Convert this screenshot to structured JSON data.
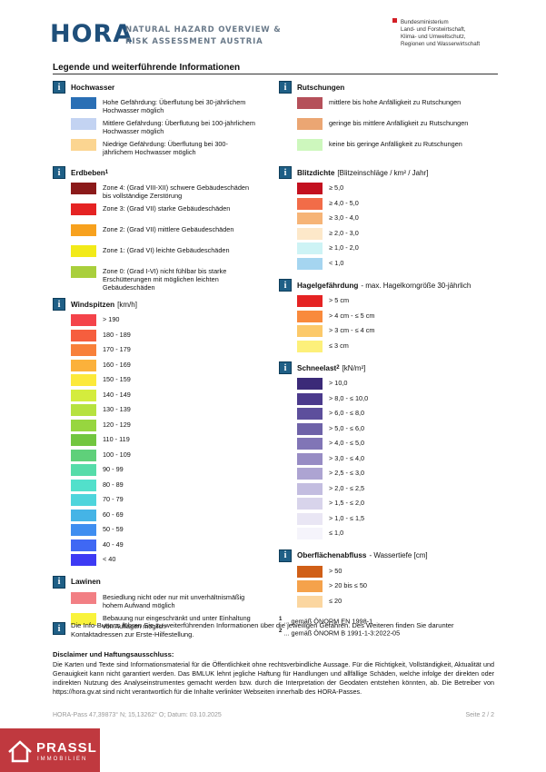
{
  "header": {
    "logo": "HORA",
    "subtitle": [
      "NATURAL HAZARD OVERVIEW &",
      "RISK ASSESSMENT AUSTRIA"
    ],
    "ministry": [
      "Bundesministerium",
      "Land- und Forstwirtschaft,",
      "Klima- und Umweltschutz,",
      "Regionen und Wasserwirtschaft"
    ]
  },
  "title": "Legende und weiterführende Informationen",
  "left": [
    {
      "title": "Hochwasser",
      "items": [
        {
          "color": "#2a6fb5",
          "label": "Hohe Gefährdung: Überflutung bei 30-jährlichem Hochwasser möglich"
        },
        {
          "color": "#c3d3f2",
          "label": "Mittlere Gefährdung: Überflutung bei 100-jährlichem Hochwasser möglich"
        },
        {
          "color": "#fbd591",
          "label": "Niedrige Gefährdung: Überflutung bei 300-jährlichem Hochwasser möglich"
        }
      ]
    },
    {
      "title": "Erdbeben",
      "sup": "1",
      "items": [
        {
          "color": "#8b1a1a",
          "label": "Zone 4: (Grad VIII-XII) schwere Gebäudeschäden bis vollständige Zerstörung"
        },
        {
          "color": "#e52323",
          "label": "Zone 3: (Grad VII) starke Gebäudeschäden"
        },
        {
          "color": "#f7a11e",
          "label": "Zone 2: (Grad VII) mittlere Gebäudeschäden"
        },
        {
          "color": "#f2ea19",
          "label": "Zone 1: (Grad VI) leichte Gebäudeschäden"
        },
        {
          "color": "#a9cf3c",
          "label": "Zone 0: (Grad I-VI) nicht fühlbar bis starke Erschütterungen mit möglichen leichten Gebäudeschäden"
        }
      ]
    },
    {
      "title": "Windspitzen",
      "unit": "[km/h]",
      "items": [
        {
          "color": "#f4434a",
          "label": "> 190"
        },
        {
          "color": "#f65e3e",
          "label": "180 - 189"
        },
        {
          "color": "#f8803a",
          "label": "170 - 179"
        },
        {
          "color": "#fbb13b",
          "label": "160 - 169"
        },
        {
          "color": "#fce93a",
          "label": "150 - 159"
        },
        {
          "color": "#d4ec3d",
          "label": "140 - 149"
        },
        {
          "color": "#b6e23f",
          "label": "130 - 139"
        },
        {
          "color": "#97d63f",
          "label": "120 - 129"
        },
        {
          "color": "#72c63f",
          "label": "110 - 119"
        },
        {
          "color": "#5fd07a",
          "label": "100 - 109"
        },
        {
          "color": "#56dca9",
          "label": "90 - 99"
        },
        {
          "color": "#52e0cb",
          "label": "80 - 89"
        },
        {
          "color": "#4ed5dc",
          "label": "70 - 79"
        },
        {
          "color": "#45b4e6",
          "label": "60 - 69"
        },
        {
          "color": "#3f8ef0",
          "label": "50 - 59"
        },
        {
          "color": "#3f68f4",
          "label": "40 - 49"
        },
        {
          "color": "#3d3af4",
          "label": "< 40"
        }
      ]
    },
    {
      "title": "Lawinen",
      "items": [
        {
          "color": "#f27f84",
          "label": "Besiedlung nicht oder nur mit unverhältnismäßig hohem Aufwand möglich"
        },
        {
          "color": "#f9f33c",
          "label": "Bebauung nur eingeschränkt und unter Einhaltung von Auflagen möglich"
        }
      ]
    }
  ],
  "right": [
    {
      "title": "Rutschungen",
      "items": [
        {
          "color": "#b5505a",
          "label": "mittlere bis hohe Anfälligkeit zu Rutschungen"
        },
        {
          "color": "#eba673",
          "label": "geringe bis mittlere Anfälligkeit zu Rutschungen"
        },
        {
          "color": "#cdf7bd",
          "label": "keine bis geringe Anfälligkeit zu Rutschungen"
        }
      ]
    },
    {
      "title": "Blitzdichte",
      "unit": "[Blitzeinschläge / km² / Jahr]",
      "items": [
        {
          "color": "#c3101f",
          "label": "≥ 5,0"
        },
        {
          "color": "#f26c48",
          "label": "≥ 4,0 - 5,0"
        },
        {
          "color": "#f6b477",
          "label": "≥ 3,0 - 4,0"
        },
        {
          "color": "#fde8c9",
          "label": "≥ 2,0 - 3,0"
        },
        {
          "color": "#cdf3f5",
          "label": "≥ 1,0 - 2,0"
        },
        {
          "color": "#a5d5f0",
          "label": "< 1,0"
        }
      ]
    },
    {
      "title": "Hagelgefährdung",
      "unit": "- max. Hagelkorngröße 30-jährlich",
      "items": [
        {
          "color": "#e52323",
          "label": "> 5 cm"
        },
        {
          "color": "#f98a3c",
          "label": "> 4 cm - ≤ 5 cm"
        },
        {
          "color": "#fcc96a",
          "label": "> 3 cm - ≤ 4 cm"
        },
        {
          "color": "#fdf07a",
          "label": "≤ 3 cm"
        }
      ]
    },
    {
      "title": "Schneelast",
      "sup": "2",
      "unit": "[kN/m²]",
      "items": [
        {
          "color": "#3b2a78",
          "label": "> 10,0"
        },
        {
          "color": "#4b3a8c",
          "label": "> 8,0 - ≤ 10,0"
        },
        {
          "color": "#5d4f9c",
          "label": "> 6,0 - ≤ 8,0"
        },
        {
          "color": "#6e62a8",
          "label": "> 5,0 - ≤ 6,0"
        },
        {
          "color": "#8175b6",
          "label": "> 4,0 - ≤ 5,0"
        },
        {
          "color": "#978cc4",
          "label": "> 3,0 - ≤ 4,0"
        },
        {
          "color": "#ada4d2",
          "label": "> 2,5 - ≤ 3,0"
        },
        {
          "color": "#c3bde0",
          "label": "> 2,0 - ≤ 2,5"
        },
        {
          "color": "#d8d4eb",
          "label": "> 1,5 - ≤ 2,0"
        },
        {
          "color": "#e9e6f4",
          "label": "> 1,0 - ≤ 1,5"
        },
        {
          "color": "#f5f4fb",
          "label": "≤ 1,0"
        }
      ]
    },
    {
      "title": "Oberflächenabfluss",
      "unit": "- Wassertiefe [cm]",
      "items": [
        {
          "color": "#d05f17",
          "label": "> 50"
        },
        {
          "color": "#f5a24b",
          "label": "> 20 bis ≤ 50"
        },
        {
          "color": "#fbd6a0",
          "label": "≤ 20"
        }
      ]
    }
  ],
  "footnotes": [
    {
      "num": "1",
      "text": "... gemäß ÖNORM EN 1998-1"
    },
    {
      "num": "2",
      "text": "... gemäß ÖNORM B 1991-1-3:2022-05"
    }
  ],
  "info_note": "Die Info-Buttons führen Sie zu weiterführenden Informationen über die jeweiligen Gefahren. Des Weiteren finden Sie darunter Kontaktadressen zur Erste-Hilfestellung.",
  "disclaimer": {
    "title": "Disclaimer und Haftungsausschluss:",
    "text": "Die Karten und Texte sind Informationsmaterial für die Öffentlichkeit ohne rechtsverbindliche Aussage. Für die Richtigkeit, Vollständigkeit, Aktualität und Genauigkeit kann nicht garantiert werden. Das BMLUK lehnt jegliche Haftung für Handlungen und allfällige Schäden, welche infolge der direkten oder indirekten Nutzung des Analyseinstrumentes gemacht werden bzw. durch die Interpretation der Geodaten entstehen könnten, ab. Die Betreiber von https://hora.gv.at sind nicht verantwortlich für die Inhalte verlinkter Webseiten innerhalb des HORA-Passes."
  },
  "footer": {
    "left": "HORA-Pass 47,39873° N; 15,13262° O; Datum: 03.10.2025",
    "right": "Seite 2 / 2"
  },
  "brand": {
    "name": "PRASSL",
    "sub": "IMMOBILIEN"
  }
}
